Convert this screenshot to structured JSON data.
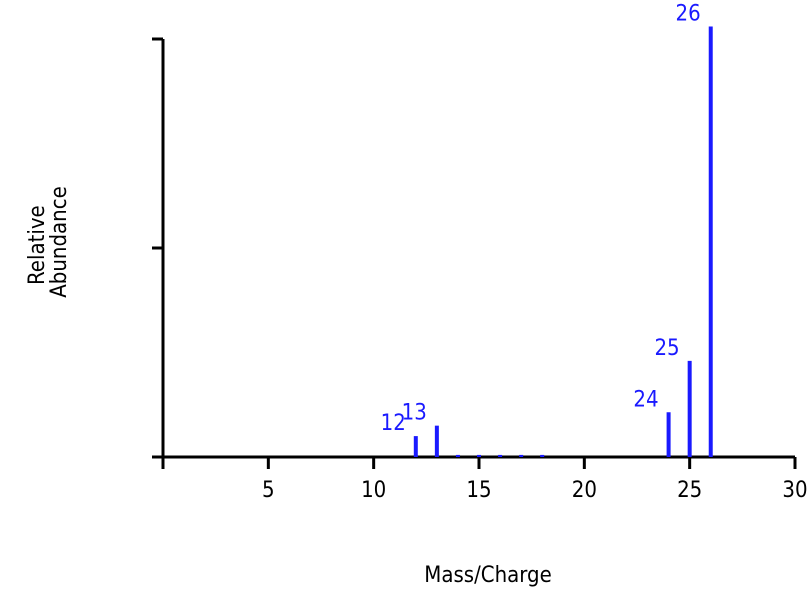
{
  "chart_data": {
    "type": "bar",
    "title": "",
    "xlabel": "Mass/Charge",
    "ylabel_lines": [
      "Relative",
      "Abundance"
    ],
    "xlim": [
      0,
      30
    ],
    "ylim": [
      0,
      100
    ],
    "x_ticks": [
      5,
      10,
      15,
      20,
      25,
      30
    ],
    "y_ticks": [
      0,
      50,
      100
    ],
    "grid": false,
    "peak_color": "#1a1aff",
    "axis_color": "#000000",
    "peaks": [
      {
        "mz": 12,
        "abundance": 5,
        "label": "12"
      },
      {
        "mz": 13,
        "abundance": 7.5,
        "label": "13"
      },
      {
        "mz": 14,
        "abundance": 0.5,
        "label": ""
      },
      {
        "mz": 15,
        "abundance": 0.5,
        "label": ""
      },
      {
        "mz": 16,
        "abundance": 0.5,
        "label": ""
      },
      {
        "mz": 17,
        "abundance": 0.5,
        "label": ""
      },
      {
        "mz": 18,
        "abundance": 0.5,
        "label": ""
      },
      {
        "mz": 24,
        "abundance": 10.7,
        "label": "24"
      },
      {
        "mz": 25,
        "abundance": 23,
        "label": "25"
      },
      {
        "mz": 26,
        "abundance": 103,
        "label": "26"
      }
    ]
  }
}
